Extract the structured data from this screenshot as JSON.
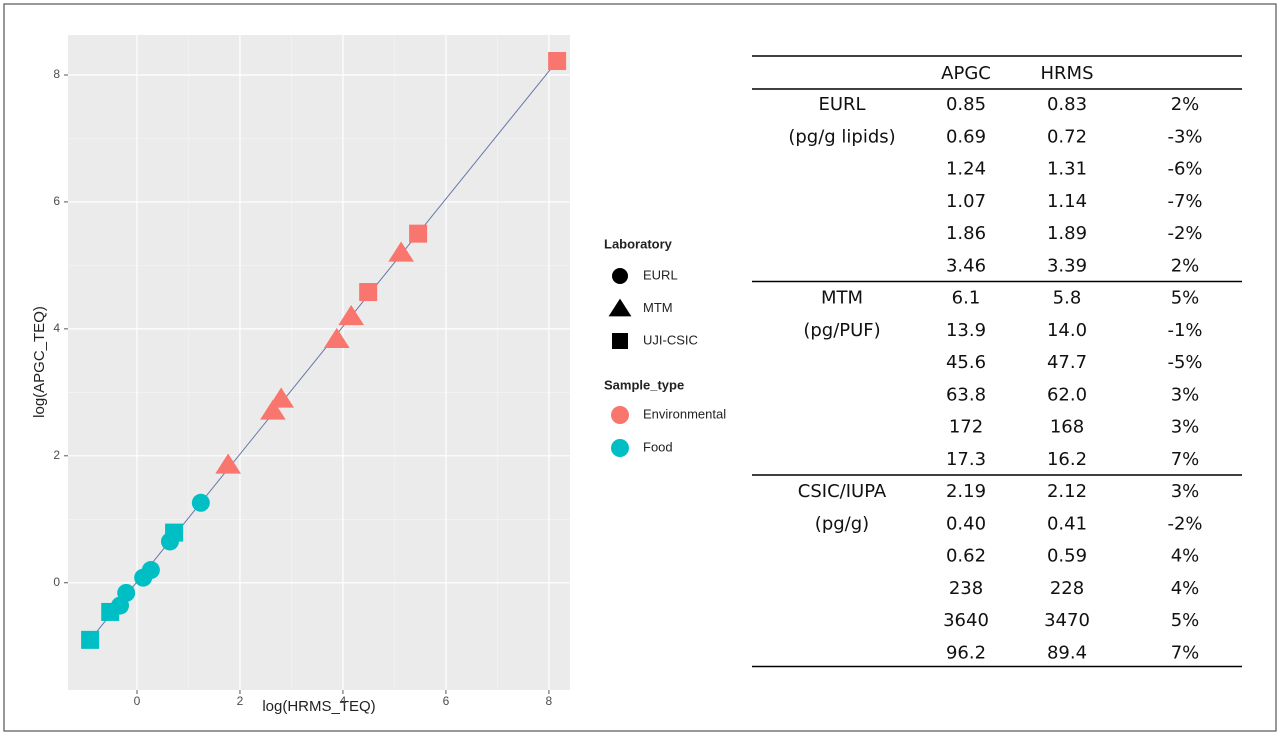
{
  "chart_data": {
    "type": "scatter",
    "x_label": "log(HRMS_TEQ)",
    "y_label": "log(APGC_TEQ)",
    "xlim": [
      -1.34,
      8.41
    ],
    "ylim": [
      -1.69,
      8.63
    ],
    "xticks": [
      0,
      2,
      4,
      6,
      8
    ],
    "yticks": [
      0,
      2,
      4,
      6,
      8
    ],
    "grid": true,
    "series": [
      {
        "shape": "square",
        "color": "#f8766d",
        "x": [
          8.16,
          5.46,
          4.49
        ],
        "y": [
          8.22,
          5.5,
          4.58
        ]
      },
      {
        "shape": "triangle",
        "color": "#f8766d",
        "x": [
          5.13,
          4.16,
          3.88,
          2.8,
          2.64,
          1.77
        ],
        "y": [
          5.2,
          4.2,
          3.84,
          2.9,
          2.71,
          1.86
        ]
      },
      {
        "shape": "circle",
        "color": "#00bfc4",
        "x": [
          1.24,
          0.64,
          0.27,
          0.12,
          -0.21,
          -0.33
        ],
        "y": [
          1.26,
          0.65,
          0.2,
          0.08,
          -0.16,
          -0.36
        ]
      },
      {
        "shape": "square",
        "color": "#00bfc4",
        "x": [
          0.72,
          -0.52,
          -0.91
        ],
        "y": [
          0.79,
          -0.46,
          -0.9
        ]
      }
    ],
    "trend": {
      "color": "#6677aa",
      "x": [
        -0.91,
        8.16
      ],
      "y": [
        -0.9,
        8.22
      ]
    },
    "legend_shapes": {
      "title": "Laboratory",
      "items": [
        {
          "label": "EURL",
          "shape": "circle"
        },
        {
          "label": "MTM",
          "shape": "triangle"
        },
        {
          "label": "UJI-CSIC",
          "shape": "square"
        }
      ]
    },
    "legend_colors": {
      "title": "Sample_type",
      "items": [
        {
          "label": "Environmental",
          "color": "#f8766d"
        },
        {
          "label": "Food",
          "color": "#00bfc4"
        }
      ]
    }
  },
  "table": {
    "header": [
      "APGC",
      "HRMS"
    ],
    "groups": [
      {
        "label": [
          "EURL",
          "(pg/g lipids)"
        ],
        "rows": [
          [
            "0.85",
            "0.83",
            "2%"
          ],
          [
            "0.69",
            "0.72",
            "-3%"
          ],
          [
            "1.24",
            "1.31",
            "-6%"
          ],
          [
            "1.07",
            "1.14",
            "-7%"
          ],
          [
            "1.86",
            "1.89",
            "-2%"
          ],
          [
            "3.46",
            "3.39",
            "2%"
          ]
        ]
      },
      {
        "label": [
          "MTM",
          "(pg/PUF)"
        ],
        "rows": [
          [
            "6.1",
            "5.8",
            "5%"
          ],
          [
            "13.9",
            "14.0",
            "-1%"
          ],
          [
            "45.6",
            "47.7",
            "-5%"
          ],
          [
            "63.8",
            "62.0",
            "3%"
          ],
          [
            "172",
            "168",
            "3%"
          ],
          [
            "17.3",
            "16.2",
            "7%"
          ]
        ]
      },
      {
        "label": [
          "CSIC/IUPA",
          "(pg/g)"
        ],
        "rows": [
          [
            "2.19",
            "2.12",
            "3%"
          ],
          [
            "0.40",
            "0.41",
            "-2%"
          ],
          [
            "0.62",
            "0.59",
            "4%"
          ],
          [
            "238",
            "228",
            "4%"
          ],
          [
            "3640",
            "3470",
            "5%"
          ],
          [
            "96.2",
            "89.4",
            "7%"
          ]
        ]
      }
    ]
  }
}
